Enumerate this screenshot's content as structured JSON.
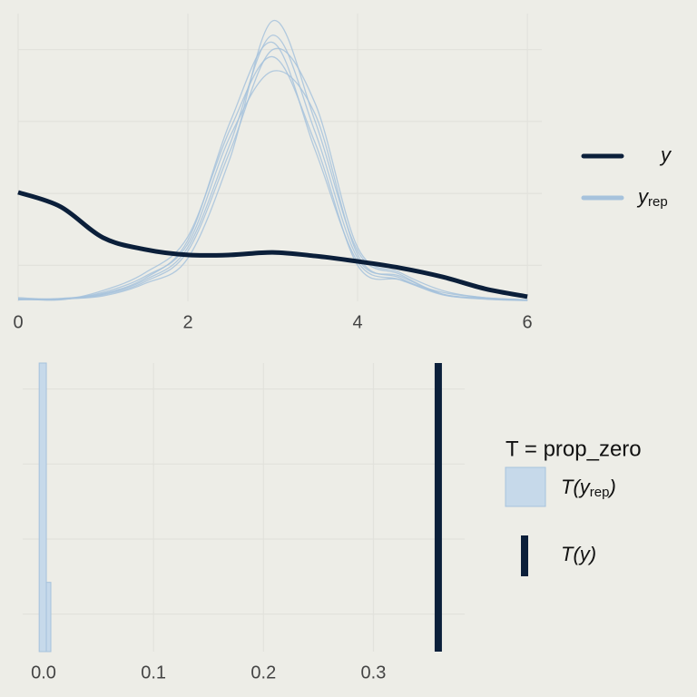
{
  "chart_data": [
    {
      "type": "density",
      "x": [
        0,
        0.5,
        1,
        1.5,
        2,
        2.5,
        3,
        3.5,
        4,
        4.5,
        5,
        5.5,
        6
      ],
      "xlim": [
        0,
        6.17
      ],
      "xticks": [
        0,
        2,
        4,
        6
      ],
      "ylim": [
        0,
        0.8
      ],
      "ygrid": [
        0.1,
        0.3,
        0.5,
        0.7
      ],
      "series": [
        {
          "color": "#a6c2dc",
          "values": [
            0.005,
            0.006,
            0.02,
            0.06,
            0.15,
            0.44,
            0.74,
            0.47,
            0.12,
            0.07,
            0.02,
            0.008,
            0.003
          ]
        },
        {
          "color": "#a6c2dc",
          "values": [
            0.008,
            0.004,
            0.03,
            0.08,
            0.18,
            0.48,
            0.68,
            0.44,
            0.1,
            0.06,
            0.025,
            0.01,
            0.004
          ]
        },
        {
          "color": "#a6c2dc",
          "values": [
            0.004,
            0.007,
            0.015,
            0.05,
            0.12,
            0.4,
            0.78,
            0.5,
            0.14,
            0.075,
            0.02,
            0.006,
            0.002
          ]
        },
        {
          "color": "#a6c2dc",
          "values": [
            0.006,
            0.005,
            0.025,
            0.07,
            0.16,
            0.46,
            0.64,
            0.52,
            0.13,
            0.065,
            0.018,
            0.009,
            0.003
          ]
        },
        {
          "color": "#a6c2dc",
          "values": [
            0.01,
            0.006,
            0.018,
            0.055,
            0.14,
            0.42,
            0.7,
            0.55,
            0.15,
            0.08,
            0.03,
            0.01,
            0.004
          ]
        },
        {
          "color": "#a6c2dc",
          "values": [
            0.005,
            0.008,
            0.022,
            0.065,
            0.17,
            0.5,
            0.72,
            0.42,
            0.11,
            0.06,
            0.02,
            0.007,
            0.003
          ]
        },
        {
          "color": "#0b1f3a",
          "values": [
            0.303,
            0.263,
            0.177,
            0.144,
            0.129,
            0.129,
            0.136,
            0.126,
            0.111,
            0.093,
            0.068,
            0.035,
            0.013
          ]
        }
      ],
      "legend": [
        {
          "label": "y",
          "color": "#0b1f3a"
        },
        {
          "label": "y",
          "sub": "rep",
          "color": "#a6c2dc"
        }
      ]
    },
    {
      "type": "histogram",
      "bins": [
        -0.004,
        0.0025,
        0.0066
      ],
      "values": [
        50,
        12
      ],
      "xlim": [
        -0.019,
        0.383
      ],
      "xticks": [
        {
          "value": 0,
          "label": "0.0"
        },
        0.1,
        0.2,
        0.3
      ],
      "ylim": [
        0,
        50
      ],
      "ygrid": [
        6.5,
        19.5,
        32.5,
        45.5
      ],
      "color": "#c6d9ea",
      "edge": "#a6c2dc",
      "observed": 0.359,
      "observed_color": "#0b1f3a",
      "legend_title": "T = prop_zero",
      "legend": [
        {
          "label": "T(y",
          "sub": "rep",
          "close": ")"
        },
        {
          "label": "T(y)"
        }
      ]
    }
  ]
}
